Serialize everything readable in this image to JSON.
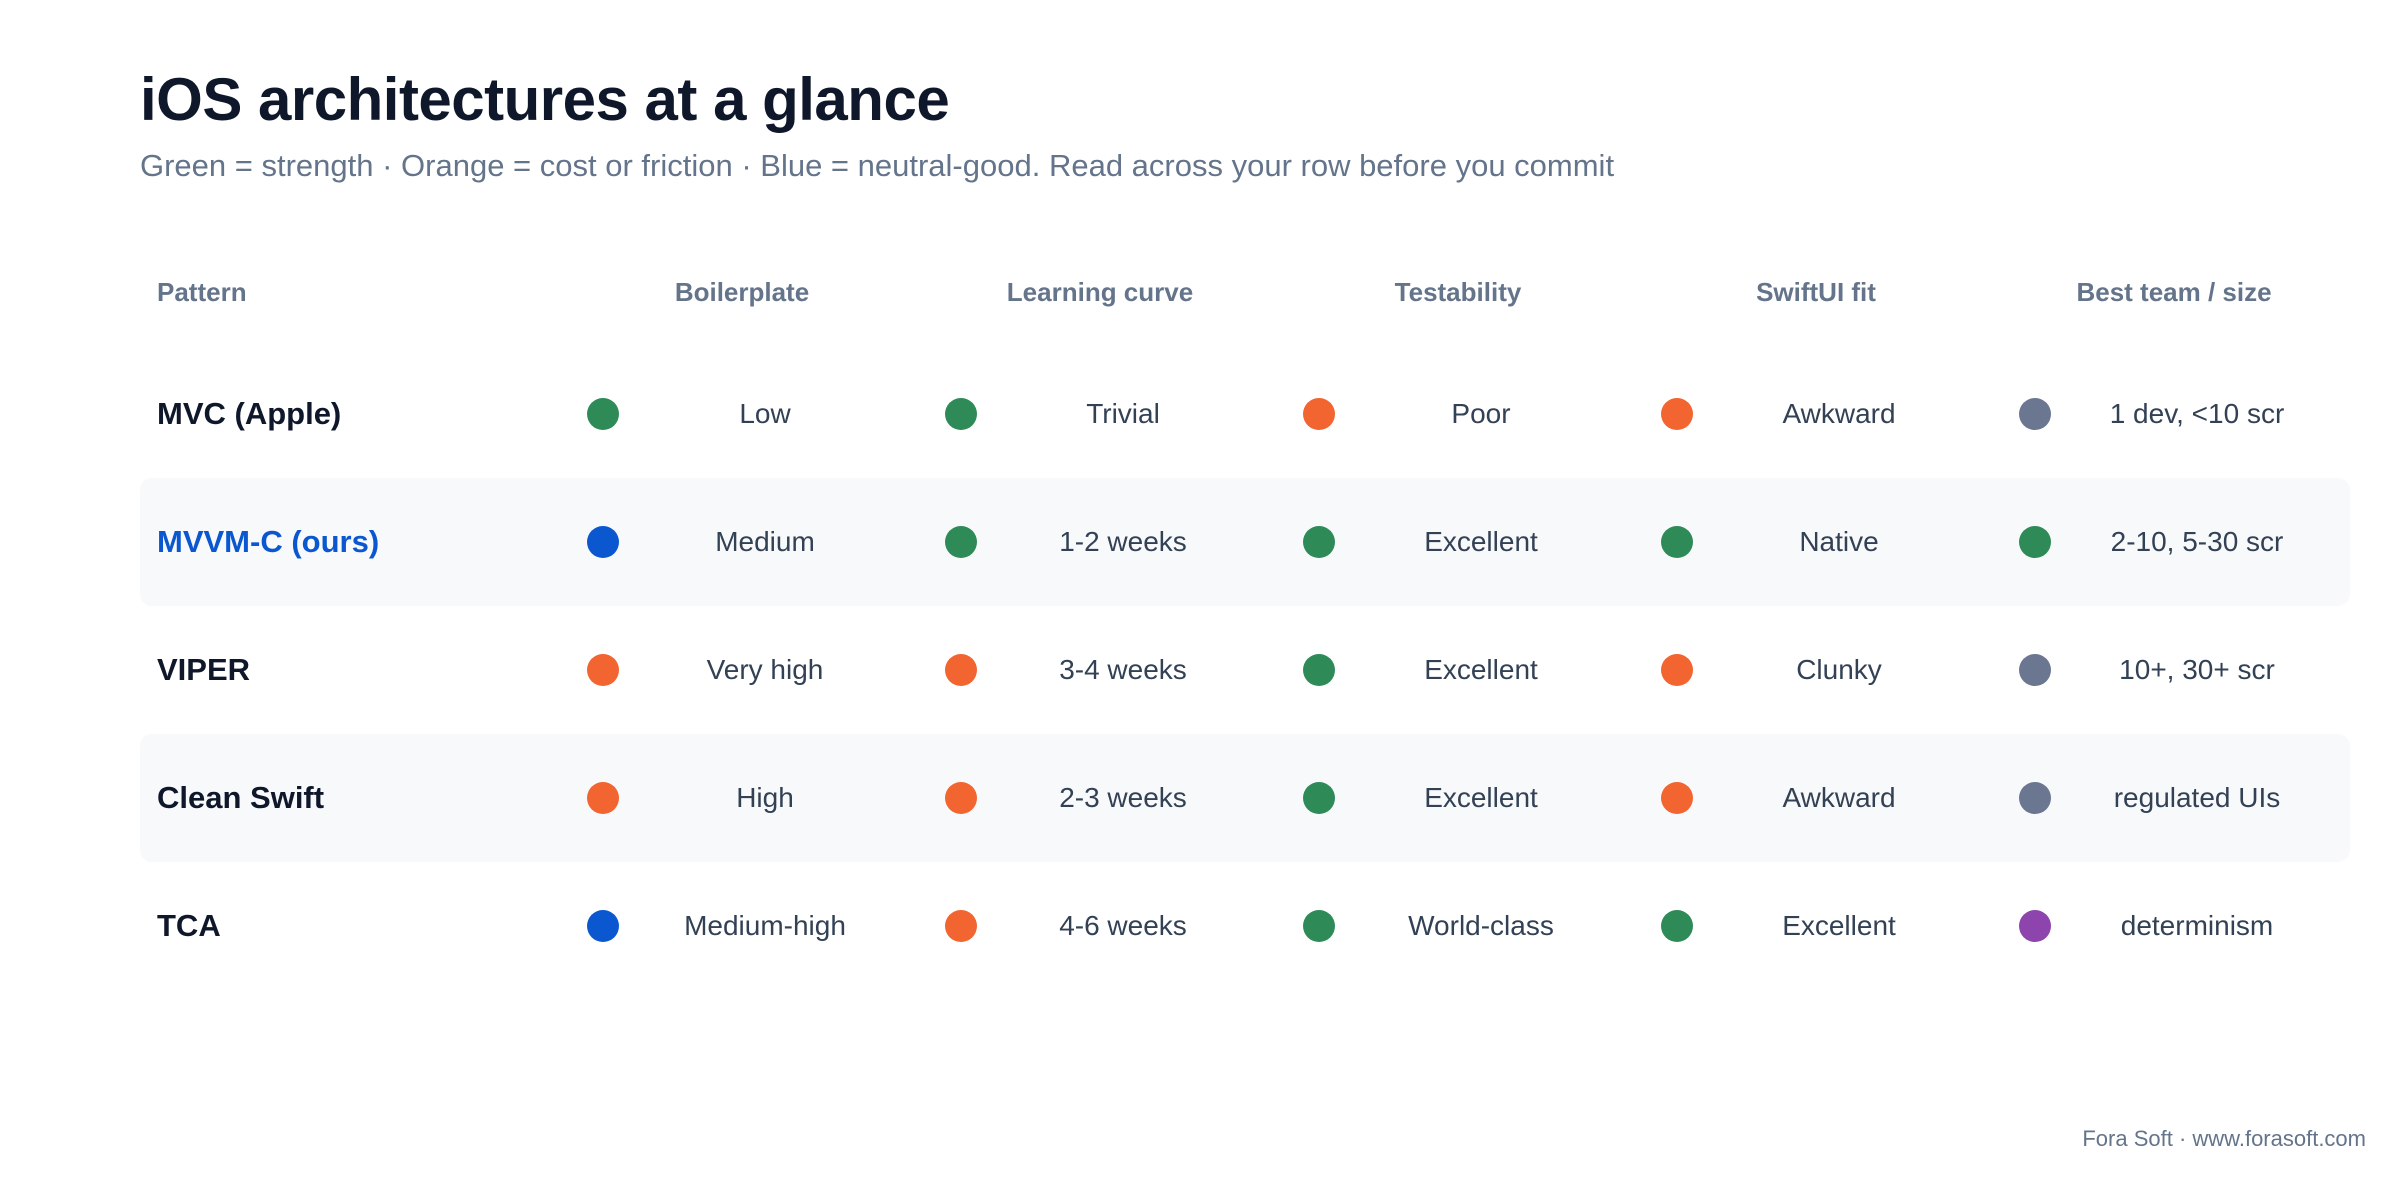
{
  "header": {
    "title": "iOS architectures at a glance",
    "subtitle": "Green = strength · Orange = cost or friction · Blue = neutral-good. Read across your row before you commit"
  },
  "colors": {
    "green": "#2e8b57",
    "orange": "#f26430",
    "blue": "#0b57d0",
    "gray": "#6b7690",
    "purple": "#8e44ad",
    "title": "#0f172a",
    "muted": "#64748b",
    "row_highlight": "#0b57d0",
    "alt_row_bg": "#f8f9fb"
  },
  "table": {
    "columns": [
      "Pattern",
      "Boilerplate",
      "Learning curve",
      "Testability",
      "SwiftUI fit",
      "Best team / size"
    ],
    "rows": [
      {
        "pattern": "MVC (Apple)",
        "highlight": false,
        "cells": [
          {
            "text": "Low",
            "color": "green"
          },
          {
            "text": "Trivial",
            "color": "green"
          },
          {
            "text": "Poor",
            "color": "orange"
          },
          {
            "text": "Awkward",
            "color": "orange"
          },
          {
            "text": "1 dev, <10 scr",
            "color": "gray"
          }
        ]
      },
      {
        "pattern": "MVVM-C (ours)",
        "highlight": true,
        "cells": [
          {
            "text": "Medium",
            "color": "blue"
          },
          {
            "text": "1-2 weeks",
            "color": "green"
          },
          {
            "text": "Excellent",
            "color": "green"
          },
          {
            "text": "Native",
            "color": "green"
          },
          {
            "text": "2-10, 5-30 scr",
            "color": "green"
          }
        ]
      },
      {
        "pattern": "VIPER",
        "highlight": false,
        "cells": [
          {
            "text": "Very high",
            "color": "orange"
          },
          {
            "text": "3-4 weeks",
            "color": "orange"
          },
          {
            "text": "Excellent",
            "color": "green"
          },
          {
            "text": "Clunky",
            "color": "orange"
          },
          {
            "text": "10+, 30+ scr",
            "color": "gray"
          }
        ]
      },
      {
        "pattern": "Clean Swift",
        "highlight": false,
        "cells": [
          {
            "text": "High",
            "color": "orange"
          },
          {
            "text": "2-3 weeks",
            "color": "orange"
          },
          {
            "text": "Excellent",
            "color": "green"
          },
          {
            "text": "Awkward",
            "color": "orange"
          },
          {
            "text": "regulated UIs",
            "color": "gray"
          }
        ]
      },
      {
        "pattern": "TCA",
        "highlight": false,
        "cells": [
          {
            "text": "Medium-high",
            "color": "blue"
          },
          {
            "text": "4-6 weeks",
            "color": "orange"
          },
          {
            "text": "World-class",
            "color": "green"
          },
          {
            "text": "Excellent",
            "color": "green"
          },
          {
            "text": "determinism",
            "color": "purple"
          }
        ]
      }
    ]
  },
  "footer": {
    "credit": "Fora Soft · www.forasoft.com"
  }
}
